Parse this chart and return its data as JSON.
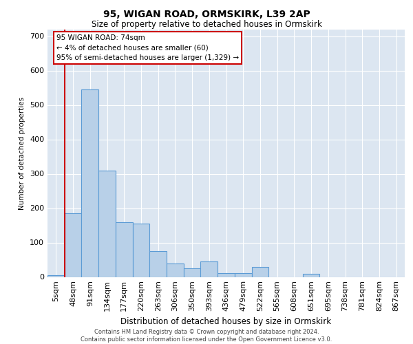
{
  "title_line1": "95, WIGAN ROAD, ORMSKIRK, L39 2AP",
  "title_line2": "Size of property relative to detached houses in Ormskirk",
  "xlabel": "Distribution of detached houses by size in Ormskirk",
  "ylabel": "Number of detached properties",
  "footer_line1": "Contains HM Land Registry data © Crown copyright and database right 2024.",
  "footer_line2": "Contains public sector information licensed under the Open Government Licence v3.0.",
  "bin_labels": [
    "5sqm",
    "48sqm",
    "91sqm",
    "134sqm",
    "177sqm",
    "220sqm",
    "263sqm",
    "306sqm",
    "350sqm",
    "393sqm",
    "436sqm",
    "479sqm",
    "522sqm",
    "565sqm",
    "608sqm",
    "651sqm",
    "695sqm",
    "738sqm",
    "781sqm",
    "824sqm",
    "867sqm"
  ],
  "bar_values": [
    5,
    185,
    545,
    310,
    160,
    155,
    75,
    40,
    25,
    45,
    12,
    12,
    30,
    0,
    0,
    10,
    0,
    0,
    0,
    0,
    0
  ],
  "bar_color": "#b8d0e8",
  "bar_edge_color": "#5b9bd5",
  "background_color": "#dce6f1",
  "grid_color": "#ffffff",
  "vline_color": "#cc0000",
  "vline_bin_index": 1,
  "ylim": [
    0,
    720
  ],
  "yticks": [
    0,
    100,
    200,
    300,
    400,
    500,
    600,
    700
  ],
  "annotation_text": "95 WIGAN ROAD: 74sqm\n← 4% of detached houses are smaller (60)\n95% of semi-detached houses are larger (1,329) →",
  "annotation_box_facecolor": "#ffffff",
  "annotation_box_edgecolor": "#cc0000"
}
